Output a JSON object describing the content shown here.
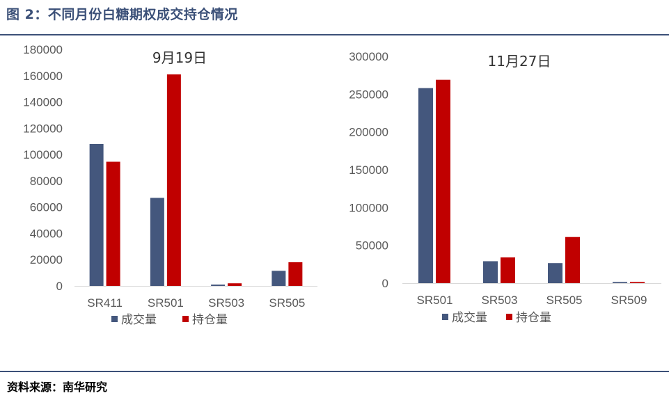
{
  "figure": {
    "title": "图 2：不同月份白糖期权成交持仓情况",
    "source": "资料来源：南华研究",
    "colors": {
      "accent": "#3b5078",
      "series_volume": "#44577d",
      "series_oi": "#c00000"
    }
  },
  "chart_data": [
    {
      "type": "bar",
      "title": "9月19日",
      "categories": [
        "SR411",
        "SR501",
        "SR503",
        "SR505"
      ],
      "series": [
        {
          "name": "成交量",
          "values": [
            108000,
            67000,
            1000,
            11500
          ]
        },
        {
          "name": "持仓量",
          "values": [
            94500,
            161000,
            2000,
            18000
          ]
        }
      ],
      "ylim": [
        0,
        180000
      ],
      "yticks": [
        "0",
        "20000",
        "40000",
        "60000",
        "80000",
        "100000",
        "120000",
        "140000",
        "160000",
        "180000"
      ],
      "legend_position": "bottom",
      "grid": false
    },
    {
      "type": "bar",
      "title": "11月27日",
      "categories": [
        "SR501",
        "SR503",
        "SR505",
        "SR509"
      ],
      "series": [
        {
          "name": "成交量",
          "values": [
            258000,
            29000,
            26500,
            1500
          ]
        },
        {
          "name": "持仓量",
          "values": [
            269000,
            34000,
            61000,
            1500
          ]
        }
      ],
      "ylim": [
        0,
        300000
      ],
      "yticks": [
        "0",
        "50000",
        "100000",
        "150000",
        "200000",
        "250000",
        "300000"
      ],
      "legend_position": "bottom",
      "grid": false
    }
  ]
}
